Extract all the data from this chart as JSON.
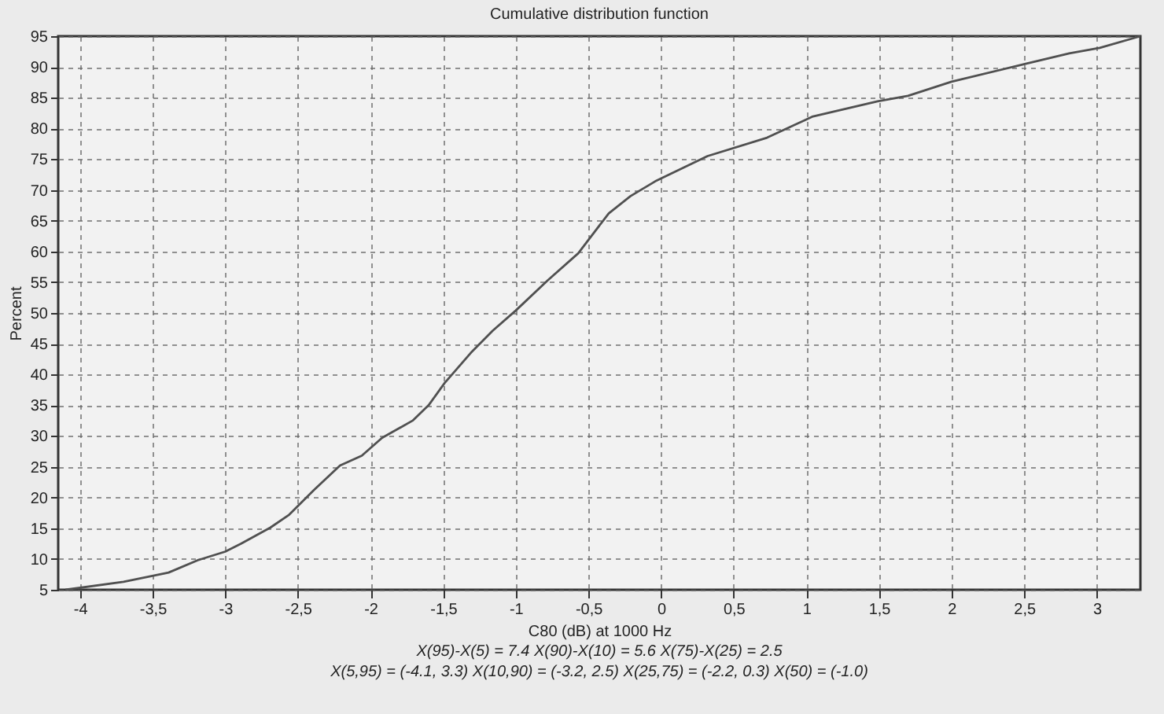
{
  "chart_data": {
    "type": "line",
    "title": "Cumulative distribution function",
    "xlabel": "C80 (dB) at 1000 Hz",
    "ylabel": "Percent",
    "annotations": [
      "X(95)-X(5) = 7.4  X(90)-X(10) = 5.6  X(75)-X(25) = 2.5",
      "X(5,95) = (-4.1, 3.3)  X(10,90) = (-3.2, 2.5)  X(25,75) = (-2.2, 0.3)  X(50) = (-1.0)"
    ],
    "x": [
      -4.1,
      -3.7,
      -3.39,
      -3.19,
      -3.0,
      -2.89,
      -2.69,
      -2.56,
      -2.39,
      -2.21,
      -2.06,
      -1.92,
      -1.71,
      -1.6,
      -1.49,
      -1.31,
      -1.16,
      -1.0,
      -0.78,
      -0.57,
      -0.36,
      -0.21,
      -0.04,
      0.32,
      0.73,
      1.04,
      1.49,
      1.7,
      2.0,
      2.51,
      2.81,
      3.02,
      3.3
    ],
    "series": [
      {
        "color": "#505050",
        "values": [
          5,
          6.3,
          7.8,
          9.8,
          11.2,
          12.5,
          15.1,
          17.2,
          21.2,
          25.2,
          26.8,
          29.7,
          32.5,
          35,
          38.6,
          43.5,
          47.1,
          50.4,
          55.3,
          59.7,
          66.2,
          69,
          71.4,
          75.5,
          78.5,
          81.9,
          84.4,
          85.3,
          87.6,
          90.5,
          92.2,
          93.1,
          95
        ]
      }
    ],
    "xlim": [
      -4.15,
      3.3
    ],
    "ylim": [
      5,
      95
    ],
    "xticks": [
      -4,
      {
        "value": -3.5,
        "label": "-3,5"
      },
      -3,
      {
        "value": -2.5,
        "label": "-2,5"
      },
      -2,
      {
        "value": -1.5,
        "label": "-1,5"
      },
      -1,
      {
        "value": -0.5,
        "label": "-0,5"
      },
      0,
      {
        "value": 0.5,
        "label": "0,5"
      },
      1,
      {
        "value": 1.5,
        "label": "1,5"
      },
      2,
      {
        "value": 2.5,
        "label": "2,5"
      },
      3
    ],
    "yticks": [
      5,
      10,
      15,
      20,
      25,
      30,
      35,
      40,
      45,
      50,
      55,
      60,
      65,
      70,
      75,
      80,
      85,
      90,
      95
    ],
    "grid": true,
    "line_style": "solid"
  }
}
